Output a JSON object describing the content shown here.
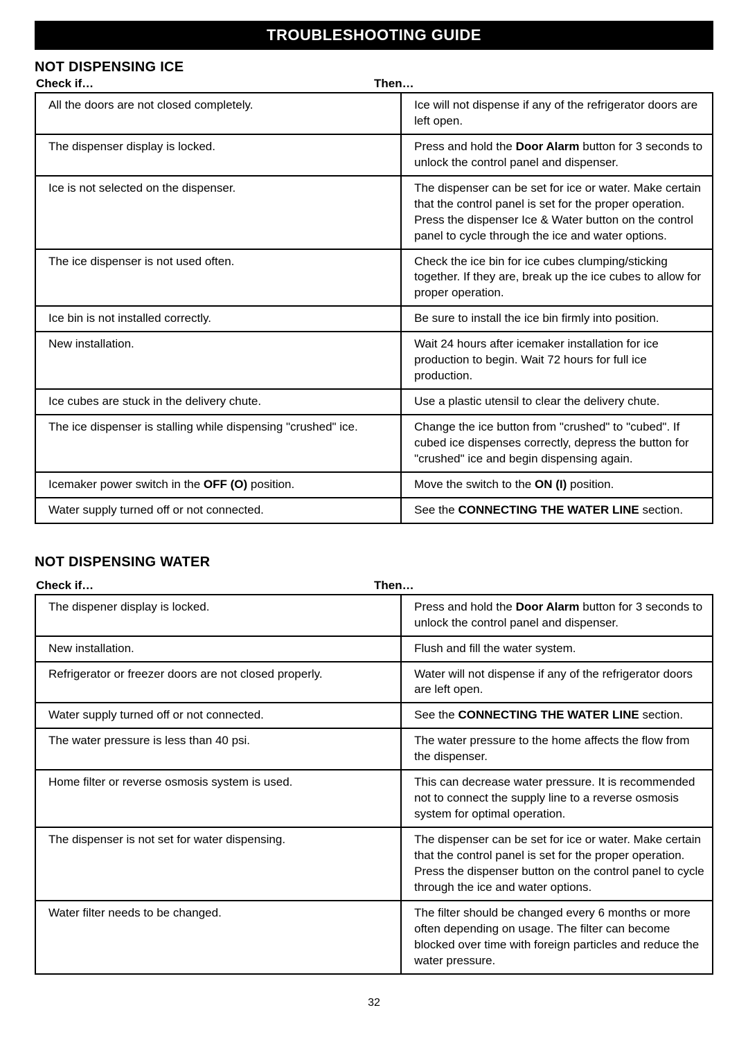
{
  "banner": "TROUBLESHOOTING GUIDE",
  "page_number": "32",
  "sections": [
    {
      "title": "NOT DISPENSING ICE",
      "check_label": "Check if…",
      "then_label": "Then…",
      "rows": [
        {
          "check": "All the doors are not closed completely.",
          "then": "Ice will not dispense if any of the refrigerator doors are left open."
        },
        {
          "check": "The dispenser display is locked.",
          "then": "Press and hold the <b>Door Alarm</b> button for 3 seconds to unlock the control panel and dispenser."
        },
        {
          "check": "Ice is not selected on the dispenser.",
          "then": "The dispenser can be set for ice or water. Make certain that the control panel is set for the proper operation. Press the dispenser Ice & Water button on the control panel to cycle through the ice and water options."
        },
        {
          "check": "The ice dispenser is not used often.",
          "then": "Check the ice bin for ice cubes clumping/sticking together. If they are, break up the ice cubes to allow for proper operation."
        },
        {
          "check": "Ice bin is not installed correctly.",
          "then": "Be sure to install the ice bin firmly into position."
        },
        {
          "check": "New installation.",
          "then": "Wait 24 hours after icemaker installation for ice production to begin. Wait 72 hours for full ice production."
        },
        {
          "check": "Ice cubes are stuck in the delivery chute.",
          "then": "Use a plastic utensil to clear the delivery chute."
        },
        {
          "check": "The ice dispenser is stalling while dispensing \"crushed\" ice.",
          "then": "Change the ice button from \"crushed\" to \"cubed\". If cubed ice dispenses correctly, depress the button for \"crushed\" ice and begin dispensing again."
        },
        {
          "check": "Icemaker power switch in the <b>OFF (O)</b> position.",
          "then": "Move the switch to the <b>ON (I)</b> position."
        },
        {
          "check": "Water supply turned off or not connected.",
          "then": "See the <b>CONNECTING THE WATER LINE</b> section."
        }
      ]
    },
    {
      "title": "NOT DISPENSING WATER",
      "check_label": "Check if…",
      "then_label": "Then…",
      "rows": [
        {
          "check": "The dispener display is locked.",
          "then": "Press and hold the <b>Door Alarm</b> button for 3 seconds to unlock the control panel and dispenser."
        },
        {
          "check": "New installation.",
          "then": "Flush and fill the water system."
        },
        {
          "check": "Refrigerator or freezer doors are not closed properly.",
          "then": "Water will not dispense if any of the refrigerator doors are left open."
        },
        {
          "check": "Water supply turned off or not connected.",
          "then": "See the <b>CONNECTING THE WATER LINE</b> section."
        },
        {
          "check": "The water pressure is less than 40 psi.",
          "then": "The water pressure to the home affects the flow from the dispenser."
        },
        {
          "check": "Home filter or reverse osmosis system is used.",
          "then": "This can decrease water pressure. It is recommended not to connect the supply line to a reverse osmosis system for optimal operation."
        },
        {
          "check": "The dispenser is not set for water dispensing.",
          "then": "The dispenser can be set for ice or water. Make certain that the control panel is set for the proper operation. Press the dispenser button on the control panel to cycle through the ice and water options."
        },
        {
          "check": "Water filter needs to be changed.",
          "then": "The filter should be changed every 6 months or more often depending on usage. The filter can become blocked over time with foreign particles and reduce the water pressure."
        }
      ]
    }
  ]
}
